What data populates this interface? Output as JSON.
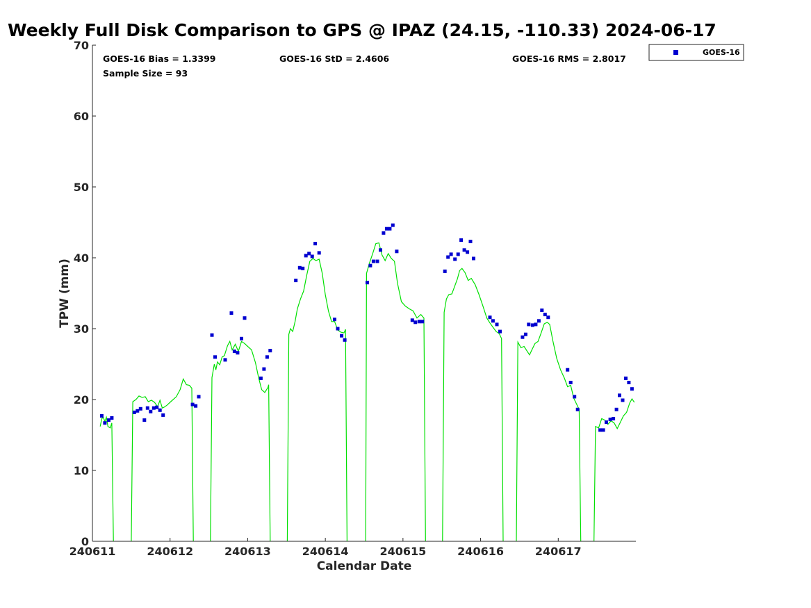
{
  "chart_data": {
    "type": "scatter",
    "title": "Weekly Full Disk Comparison to GPS @ IPAZ (24.15, -110.33) 2024-06-17",
    "xlabel": "Calendar Date",
    "ylabel": "TPW (mm)",
    "xlim": [
      240611,
      240618
    ],
    "ylim": [
      0,
      70
    ],
    "xticks": [
      240611,
      240612,
      240613,
      240614,
      240615,
      240616,
      240617
    ],
    "xtick_labels": [
      "240611",
      "240612",
      "240613",
      "240614",
      "240615",
      "240616",
      "240617"
    ],
    "yticks": [
      0,
      10,
      20,
      30,
      40,
      50,
      60,
      70
    ],
    "ytick_labels": [
      "0",
      "10",
      "20",
      "30",
      "40",
      "50",
      "60",
      "70"
    ],
    "grid": false,
    "legend_position": "top-right",
    "stats": [
      "GOES-16 Bias = 1.3399",
      "GOES-16 StD = 2.4606",
      "GOES-16 RMS = 2.8017",
      "Sample Size = 93"
    ],
    "series": [
      {
        "name": "GOES-16",
        "kind": "scatter",
        "color": "#0000d0",
        "points": [
          [
            240611.12,
            17.7
          ],
          [
            240611.16,
            16.7
          ],
          [
            240611.21,
            17.1
          ],
          [
            240611.25,
            17.4
          ],
          [
            240611.54,
            18.2
          ],
          [
            240611.58,
            18.4
          ],
          [
            240611.62,
            18.7
          ],
          [
            240611.67,
            17.1
          ],
          [
            240611.71,
            18.8
          ],
          [
            240611.75,
            18.3
          ],
          [
            240611.79,
            18.8
          ],
          [
            240611.83,
            18.9
          ],
          [
            240611.87,
            18.5
          ],
          [
            240611.91,
            17.8
          ],
          [
            240612.29,
            19.3
          ],
          [
            240612.33,
            19.1
          ],
          [
            240612.37,
            20.4
          ],
          [
            240612.54,
            29.1
          ],
          [
            240612.58,
            26.0
          ],
          [
            240612.79,
            32.2
          ],
          [
            240612.71,
            25.6
          ],
          [
            240612.83,
            26.8
          ],
          [
            240612.87,
            26.6
          ],
          [
            240612.92,
            28.6
          ],
          [
            240612.96,
            31.5
          ],
          [
            240613.17,
            23.0
          ],
          [
            240613.21,
            24.3
          ],
          [
            240613.25,
            26.0
          ],
          [
            240613.29,
            26.9
          ],
          [
            240613.62,
            36.8
          ],
          [
            240613.67,
            38.6
          ],
          [
            240613.71,
            38.5
          ],
          [
            240613.75,
            40.3
          ],
          [
            240613.79,
            40.6
          ],
          [
            240613.83,
            40.2
          ],
          [
            240613.87,
            42.0
          ],
          [
            240613.92,
            40.7
          ],
          [
            240614.12,
            31.3
          ],
          [
            240614.16,
            30.0
          ],
          [
            240614.21,
            29.0
          ],
          [
            240614.25,
            28.4
          ],
          [
            240614.54,
            36.5
          ],
          [
            240614.58,
            38.9
          ],
          [
            240614.62,
            39.5
          ],
          [
            240614.67,
            39.5
          ],
          [
            240614.71,
            41.1
          ],
          [
            240614.75,
            43.5
          ],
          [
            240614.79,
            44.1
          ],
          [
            240614.83,
            44.1
          ],
          [
            240614.87,
            44.6
          ],
          [
            240614.92,
            40.9
          ],
          [
            240615.12,
            31.2
          ],
          [
            240615.16,
            30.9
          ],
          [
            240615.21,
            31.0
          ],
          [
            240615.25,
            31.0
          ],
          [
            240615.54,
            38.1
          ],
          [
            240615.58,
            40.1
          ],
          [
            240615.62,
            40.5
          ],
          [
            240615.67,
            39.8
          ],
          [
            240615.71,
            40.5
          ],
          [
            240615.75,
            42.5
          ],
          [
            240615.79,
            41.1
          ],
          [
            240615.83,
            40.8
          ],
          [
            240615.87,
            42.3
          ],
          [
            240615.91,
            39.9
          ],
          [
            240616.12,
            31.6
          ],
          [
            240616.16,
            31.1
          ],
          [
            240616.21,
            30.6
          ],
          [
            240616.25,
            29.6
          ],
          [
            240616.54,
            28.8
          ],
          [
            240616.58,
            29.2
          ],
          [
            240616.62,
            30.6
          ],
          [
            240616.67,
            30.5
          ],
          [
            240616.71,
            30.6
          ],
          [
            240616.75,
            31.1
          ],
          [
            240616.79,
            32.6
          ],
          [
            240616.83,
            32.0
          ],
          [
            240616.87,
            31.6
          ],
          [
            240617.12,
            24.2
          ],
          [
            240617.16,
            22.4
          ],
          [
            240617.21,
            20.4
          ],
          [
            240617.25,
            18.6
          ],
          [
            240617.54,
            15.7
          ],
          [
            240617.58,
            15.7
          ],
          [
            240617.62,
            16.8
          ],
          [
            240617.67,
            17.2
          ],
          [
            240617.71,
            17.3
          ],
          [
            240617.75,
            18.6
          ],
          [
            240617.79,
            20.6
          ],
          [
            240617.83,
            19.9
          ],
          [
            240617.87,
            23.0
          ],
          [
            240617.91,
            22.4
          ],
          [
            240617.95,
            21.5
          ]
        ]
      },
      {
        "name": "",
        "kind": "line",
        "color": "#00e000",
        "segments": [
          [
            [
              240611.1,
              16.2
            ],
            [
              240611.12,
              17.3
            ],
            [
              240611.14,
              17.5
            ],
            [
              240611.16,
              16.9
            ],
            [
              240611.18,
              17.5
            ],
            [
              240611.2,
              16.2
            ],
            [
              240611.23,
              16.0
            ],
            [
              240611.25,
              16.7
            ],
            [
              240611.27,
              0
            ]
          ],
          [
            [
              240611.5,
              0
            ],
            [
              240611.52,
              19.7
            ],
            [
              240611.56,
              20.0
            ],
            [
              240611.6,
              20.5
            ],
            [
              240611.64,
              20.3
            ],
            [
              240611.68,
              20.4
            ],
            [
              240611.72,
              19.7
            ],
            [
              240611.76,
              19.9
            ],
            [
              240611.8,
              19.6
            ],
            [
              240611.84,
              19.0
            ],
            [
              240611.87,
              19.9
            ],
            [
              240611.9,
              18.8
            ],
            [
              240611.92,
              18.9
            ],
            [
              240611.96,
              19.2
            ],
            [
              240612.02,
              19.8
            ],
            [
              240612.08,
              20.4
            ],
            [
              240612.13,
              21.4
            ],
            [
              240612.17,
              22.9
            ],
            [
              240612.21,
              22.1
            ],
            [
              240612.25,
              22.0
            ],
            [
              240612.28,
              21.6
            ],
            [
              240612.3,
              0
            ]
          ],
          [
            [
              240612.52,
              0
            ],
            [
              240612.54,
              23.1
            ],
            [
              240612.57,
              25.0
            ],
            [
              240612.59,
              24.2
            ],
            [
              240612.61,
              25.3
            ],
            [
              240612.64,
              24.9
            ],
            [
              240612.67,
              26.0
            ],
            [
              240612.7,
              26.2
            ],
            [
              240612.74,
              27.6
            ],
            [
              240612.77,
              28.2
            ],
            [
              240612.8,
              27.0
            ],
            [
              240612.84,
              27.8
            ],
            [
              240612.88,
              26.8
            ],
            [
              240612.92,
              28.2
            ],
            [
              240612.96,
              27.9
            ],
            [
              240613.0,
              27.5
            ],
            [
              240613.05,
              27.0
            ],
            [
              240613.1,
              25.2
            ],
            [
              240613.14,
              23.1
            ],
            [
              240613.18,
              21.4
            ],
            [
              240613.22,
              21.0
            ],
            [
              240613.26,
              21.7
            ],
            [
              240613.27,
              22.1
            ],
            [
              240613.29,
              0
            ]
          ],
          [
            [
              240613.51,
              0
            ],
            [
              240613.53,
              29.2
            ],
            [
              240613.55,
              30.0
            ],
            [
              240613.58,
              29.6
            ],
            [
              240613.61,
              31.0
            ],
            [
              240613.64,
              32.8
            ],
            [
              240613.68,
              34.2
            ],
            [
              240613.72,
              35.3
            ],
            [
              240613.76,
              37.5
            ],
            [
              240613.8,
              39.5
            ],
            [
              240613.84,
              39.9
            ],
            [
              240613.88,
              39.6
            ],
            [
              240613.92,
              39.8
            ],
            [
              240613.96,
              37.8
            ],
            [
              240614.0,
              34.8
            ],
            [
              240614.04,
              32.5
            ],
            [
              240614.08,
              31.0
            ],
            [
              240614.12,
              31.0
            ],
            [
              240614.16,
              29.8
            ],
            [
              240614.2,
              29.5
            ],
            [
              240614.24,
              29.4
            ],
            [
              240614.26,
              29.9
            ],
            [
              240614.28,
              0
            ]
          ],
          [
            [
              240614.52,
              0
            ],
            [
              240614.53,
              37.8
            ],
            [
              240614.57,
              39.3
            ],
            [
              240614.61,
              40.6
            ],
            [
              240614.65,
              42.0
            ],
            [
              240614.69,
              42.1
            ],
            [
              240614.73,
              40.4
            ],
            [
              240614.77,
              39.6
            ],
            [
              240614.81,
              40.6
            ],
            [
              240614.85,
              39.9
            ],
            [
              240614.89,
              39.5
            ],
            [
              240614.93,
              36.4
            ],
            [
              240614.98,
              33.8
            ],
            [
              240615.03,
              33.2
            ],
            [
              240615.08,
              32.8
            ],
            [
              240615.13,
              32.5
            ],
            [
              240615.18,
              31.5
            ],
            [
              240615.23,
              32.0
            ],
            [
              240615.27,
              31.5
            ],
            [
              240615.29,
              0
            ]
          ],
          [
            [
              240615.51,
              0
            ],
            [
              240615.53,
              32.3
            ],
            [
              240615.56,
              34.2
            ],
            [
              240615.59,
              34.8
            ],
            [
              240615.63,
              34.9
            ],
            [
              240615.67,
              36.1
            ],
            [
              240615.7,
              37.0
            ],
            [
              240615.73,
              38.2
            ],
            [
              240615.76,
              38.5
            ],
            [
              240615.8,
              37.9
            ],
            [
              240615.84,
              36.8
            ],
            [
              240615.88,
              37.1
            ],
            [
              240615.93,
              36.2
            ],
            [
              240615.98,
              34.8
            ],
            [
              240616.03,
              33.2
            ],
            [
              240616.08,
              31.5
            ],
            [
              240616.12,
              30.8
            ],
            [
              240616.16,
              30.2
            ],
            [
              240616.2,
              29.6
            ],
            [
              240616.24,
              29.3
            ],
            [
              240616.27,
              28.6
            ],
            [
              240616.29,
              0
            ]
          ],
          [
            [
              240616.46,
              0
            ],
            [
              240616.48,
              28.1
            ],
            [
              240616.52,
              27.3
            ],
            [
              240616.56,
              27.5
            ],
            [
              240616.6,
              26.8
            ],
            [
              240616.63,
              26.3
            ],
            [
              240616.66,
              27.0
            ],
            [
              240616.7,
              27.9
            ],
            [
              240616.74,
              28.2
            ],
            [
              240616.78,
              29.4
            ],
            [
              240616.82,
              30.7
            ],
            [
              240616.86,
              30.9
            ],
            [
              240616.89,
              30.6
            ],
            [
              240616.93,
              28.3
            ],
            [
              240616.98,
              25.8
            ],
            [
              240617.03,
              24.2
            ],
            [
              240617.08,
              23.0
            ],
            [
              240617.12,
              21.8
            ],
            [
              240617.16,
              22.0
            ],
            [
              240617.2,
              20.2
            ],
            [
              240617.23,
              19.5
            ],
            [
              240617.27,
              18.6
            ],
            [
              240617.29,
              0
            ]
          ],
          [
            [
              240617.46,
              0
            ],
            [
              240617.48,
              16.2
            ],
            [
              240617.52,
              16.0
            ],
            [
              240617.56,
              17.3
            ],
            [
              240617.6,
              17.1
            ],
            [
              240617.64,
              16.5
            ],
            [
              240617.68,
              17.0
            ],
            [
              240617.72,
              16.7
            ],
            [
              240617.76,
              15.9
            ],
            [
              240617.8,
              16.8
            ],
            [
              240617.84,
              17.7
            ],
            [
              240617.88,
              18.2
            ],
            [
              240617.92,
              19.5
            ],
            [
              240617.95,
              20.1
            ],
            [
              240617.98,
              19.6
            ]
          ]
        ]
      }
    ]
  }
}
